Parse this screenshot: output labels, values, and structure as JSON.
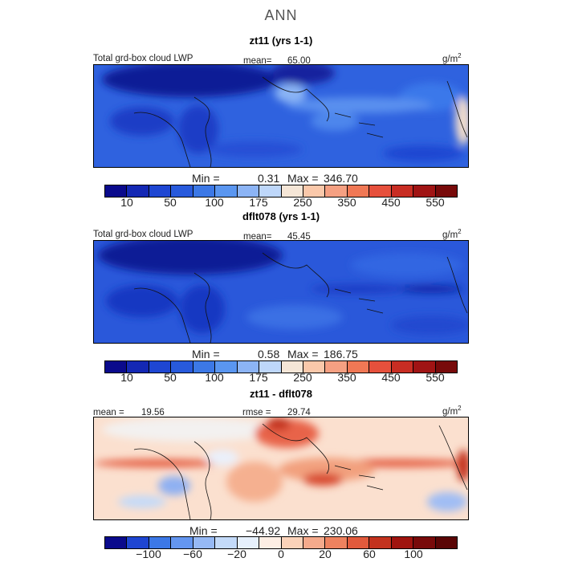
{
  "title": "ANN",
  "colors": {
    "abs_scale": [
      "#0a0a8c",
      "#1428b4",
      "#1e46d2",
      "#285adc",
      "#3c78e6",
      "#5a96f0",
      "#8cb4f5",
      "#bed7fa",
      "#f5e6d7",
      "#fac8aa",
      "#f5a082",
      "#f07855",
      "#e6503c",
      "#c82d23",
      "#a01414",
      "#780a0a"
    ],
    "diff_scale": [
      "#0a0a8c",
      "#1e46d2",
      "#3c78e6",
      "#6496f0",
      "#96b9f5",
      "#c3daf9",
      "#e6f0fc",
      "#fdeee4",
      "#fad2b9",
      "#f5aa8c",
      "#ee825f",
      "#e15a3c",
      "#c3321e",
      "#a0140f",
      "#780a0a",
      "#5a0505"
    ]
  },
  "panel1": {
    "title": "zt11 (yrs 1-1)",
    "variable": "Total grd-box cloud LWP",
    "mean_label": "mean=",
    "mean_value": "65.00",
    "unit": "g/m",
    "unit_exp": "2",
    "min_label": "Min =",
    "min_value": "0.31",
    "max_label": "Max =",
    "max_value": "346.70",
    "ticks": [
      "10",
      "50",
      "100",
      "175",
      "250",
      "350",
      "450",
      "550"
    ]
  },
  "panel2": {
    "title": "dflt078 (yrs 1-1)",
    "variable": "Total grd-box cloud LWP",
    "mean_label": "mean=",
    "mean_value": "45.45",
    "unit": "g/m",
    "unit_exp": "2",
    "min_label": "Min =",
    "min_value": "0.58",
    "max_label": "Max =",
    "max_value": "186.75",
    "ticks": [
      "10",
      "50",
      "100",
      "175",
      "250",
      "350",
      "450",
      "550"
    ]
  },
  "panel3": {
    "title": "zt11 - dflt078",
    "mean_label": "mean =",
    "mean_value": "19.56",
    "rmse_label": "rmse =",
    "rmse_value": "29.74",
    "unit": "g/m",
    "unit_exp": "2",
    "min_label": "Min =",
    "min_value": "−44.92",
    "max_label": "Max =",
    "max_value": "230.06",
    "ticks": [
      "−100",
      "−60",
      "−20",
      "0",
      "20",
      "60",
      "100"
    ]
  }
}
